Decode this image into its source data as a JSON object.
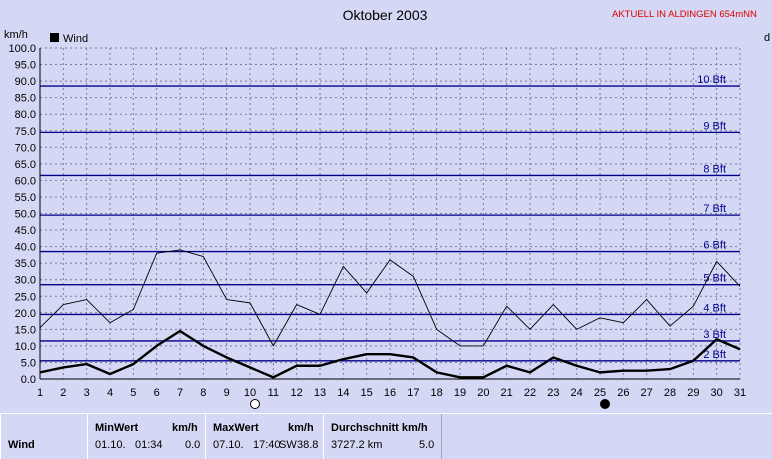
{
  "header": {
    "title": "Oktober 2003",
    "status": "AKTUELL IN ALDINGEN 654mNN",
    "y_unit": "km/h",
    "right_marker": "d"
  },
  "legend": {
    "label": "Wind",
    "color": "#000000"
  },
  "colors": {
    "background": "#d4d8f4",
    "bft_line": "#00008b",
    "grid": "#7a7a9a",
    "status": "#e00000"
  },
  "chart_data": {
    "type": "line",
    "title": "Oktober 2003",
    "ylabel": "km/h",
    "xlim": [
      1,
      31
    ],
    "ylim": [
      0,
      100
    ],
    "x": [
      1,
      2,
      3,
      4,
      5,
      6,
      7,
      8,
      9,
      10,
      11,
      12,
      13,
      14,
      15,
      16,
      17,
      18,
      19,
      20,
      21,
      22,
      23,
      24,
      25,
      26,
      27,
      28,
      29,
      30,
      31
    ],
    "y_ticks": [
      "0.0",
      "5.0",
      "10.0",
      "15.0",
      "20.0",
      "25.0",
      "30.0",
      "35.0",
      "40.0",
      "45.0",
      "50.0",
      "55.0",
      "60.0",
      "65.0",
      "70.0",
      "75.0",
      "80.0",
      "85.0",
      "90.0",
      "95.0",
      "100.0"
    ],
    "series": [
      {
        "name": "Wind",
        "style": "bold",
        "values": [
          2,
          3.5,
          4.5,
          1.5,
          4.5,
          10,
          14.5,
          10,
          6.5,
          3.5,
          0.5,
          4,
          4,
          6,
          7.5,
          7.5,
          6.5,
          2,
          0.5,
          0.5,
          4,
          2,
          6.5,
          4,
          2,
          2.5,
          2.5,
          3,
          5.5,
          12,
          9
        ]
      },
      {
        "values": [
          15.5,
          22.5,
          24,
          17,
          21,
          38,
          39,
          37,
          24,
          23,
          10,
          22.5,
          19.5,
          34,
          26,
          36,
          31,
          15,
          10,
          10,
          22,
          15,
          22.5,
          15,
          18.5,
          17,
          24,
          16,
          22,
          35.5,
          28
        ]
      }
    ],
    "beaufort_lines": [
      {
        "label": "2 Bft",
        "value": 5.5
      },
      {
        "label": "3 Bft",
        "value": 11.5
      },
      {
        "label": "4 Bft",
        "value": 19.5
      },
      {
        "label": "5 Bft",
        "value": 28.5
      },
      {
        "label": "6 Bft",
        "value": 38.5
      },
      {
        "label": "7 Bft",
        "value": 49.5
      },
      {
        "label": "8 Bft",
        "value": 61.5
      },
      {
        "label": "9 Bft",
        "value": 74.5
      },
      {
        "label": "10 Bft",
        "value": 88.5
      }
    ],
    "moon_phases": [
      {
        "day": 10,
        "phase": "full"
      },
      {
        "day": 25,
        "phase": "new"
      }
    ],
    "grid": true
  },
  "stats": {
    "row_label": "Wind",
    "min": {
      "header": "MinWert",
      "unit": "km/h",
      "date": "01.10.",
      "time": "01:34",
      "value": "0.0"
    },
    "max": {
      "header": "MaxWert",
      "unit": "km/h",
      "date": "07.10.",
      "time": "17:40",
      "dir": "SW",
      "value": "38.8"
    },
    "avg": {
      "header": "Durchschnitt km/h",
      "distance": "3727.2 km",
      "value": "5.0"
    }
  }
}
